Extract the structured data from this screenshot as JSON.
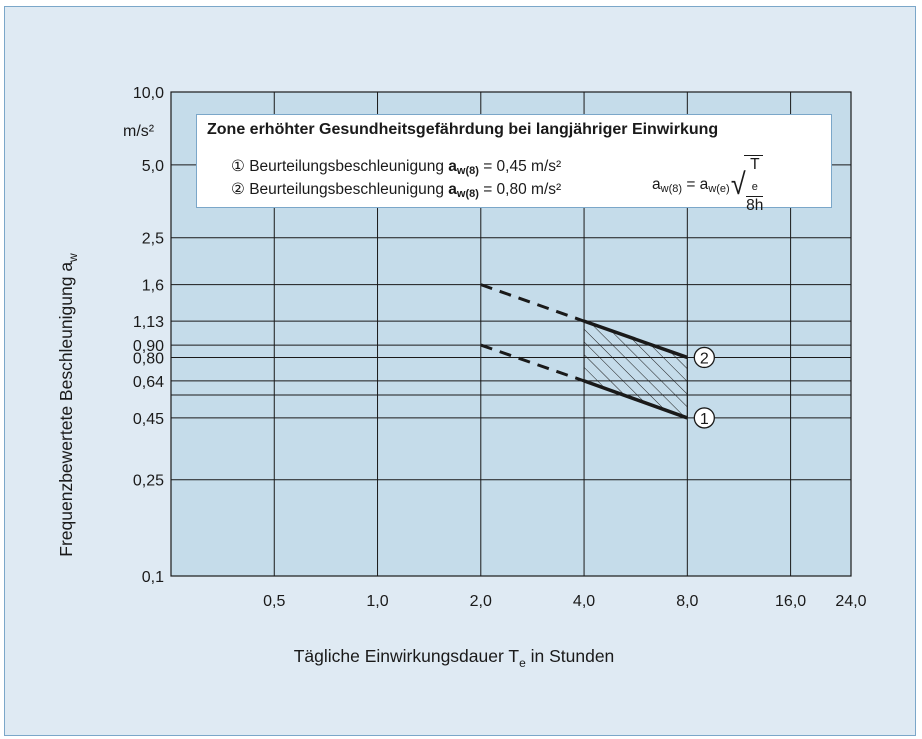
{
  "chart_data": {
    "type": "line",
    "title": "Zone erhöhter Gesundheitsgefährdung bei langjähriger Einwirkung",
    "xlabel_main": "Tägliche Einwirkungsdauer T",
    "xlabel_sub": "e",
    "xlabel_rest": " in Stunden",
    "ylabel_main": "Frequenzbewertete Beschleunigung a",
    "ylabel_sub": "w",
    "y_unit": "m/s²",
    "x_scale": "log",
    "y_scale": "log",
    "xlim": [
      0.25,
      24.0
    ],
    "ylim": [
      0.1,
      10.0
    ],
    "x_ticks": [
      {
        "value": 0.5,
        "label": "0,5"
      },
      {
        "value": 1.0,
        "label": "1,0"
      },
      {
        "value": 2.0,
        "label": "2,0"
      },
      {
        "value": 4.0,
        "label": "4,0"
      },
      {
        "value": 8.0,
        "label": "8,0"
      },
      {
        "value": 16.0,
        "label": "16,0"
      },
      {
        "value": 24.0,
        "label": "24,0"
      }
    ],
    "y_ticks": [
      {
        "value": 0.1,
        "label": "0,1"
      },
      {
        "value": 0.25,
        "label": "0,25"
      },
      {
        "value": 0.45,
        "label": "0,45"
      },
      {
        "value": 0.64,
        "label": "0,64"
      },
      {
        "value": 0.8,
        "label": "0,80"
      },
      {
        "value": 0.9,
        "label": "0,90"
      },
      {
        "value": 1.13,
        "label": "1,13"
      },
      {
        "value": 1.6,
        "label": "1,6"
      },
      {
        "value": 2.5,
        "label": "2,5"
      },
      {
        "value": 5.0,
        "label": "5,0"
      },
      {
        "value": 10.0,
        "label": "10,0"
      }
    ],
    "extra_gridlines_y": [
      0.56
    ],
    "grid": true,
    "series": [
      {
        "name": "①",
        "solid": [
          {
            "x": 4.0,
            "y": 0.64
          },
          {
            "x": 8.0,
            "y": 0.45
          }
        ],
        "dashed": [
          {
            "x": 2.0,
            "y": 0.9
          },
          {
            "x": 4.0,
            "y": 0.64
          }
        ],
        "marker_label": "1"
      },
      {
        "name": "②",
        "solid": [
          {
            "x": 4.0,
            "y": 1.13
          },
          {
            "x": 8.0,
            "y": 0.8
          }
        ],
        "dashed": [
          {
            "x": 2.0,
            "y": 1.6
          },
          {
            "x": 4.0,
            "y": 1.13
          }
        ],
        "marker_label": "2"
      }
    ],
    "hatched_zone": [
      {
        "x": 4.0,
        "y": 1.13
      },
      {
        "x": 8.0,
        "y": 0.8
      },
      {
        "x": 8.0,
        "y": 0.45
      },
      {
        "x": 4.0,
        "y": 0.64
      }
    ],
    "colors": {
      "plot_background": "#c5dcea",
      "frame_background": "#dfeaf3",
      "grid": "#1a1a1a",
      "lines": "#1a1a1a"
    }
  },
  "legend": {
    "item1_prefix": "① Beurteilungsbeschleunigung ",
    "item1_var": "a",
    "item1_sub": "w(8)",
    "item1_value": " = 0,45 m/s²",
    "item2_prefix": "② Beurteilungsbeschleunigung ",
    "item2_var": "a",
    "item2_sub": "w(8)",
    "item2_value": " = 0,80 m/s²"
  },
  "formula": {
    "lhs": "a",
    "lhs_sub": "w(8)",
    "eq": " = a",
    "rhs_sub": "w(e)",
    "num": "T",
    "num_sub": "e",
    "den": "8h"
  }
}
